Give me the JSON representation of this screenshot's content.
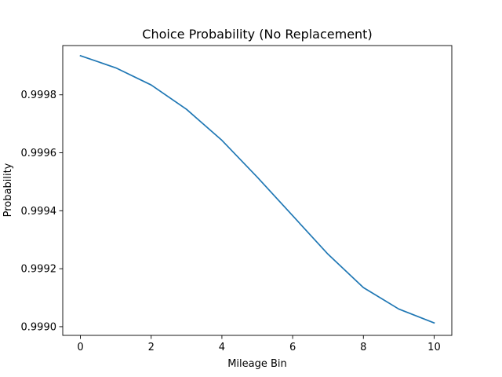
{
  "chart_data": {
    "type": "line",
    "title": "Choice Probability (No Replacement)",
    "xlabel": "Mileage Bin",
    "ylabel": "Probability",
    "xlim": [
      -0.5,
      10.5
    ],
    "ylim": [
      0.99897,
      0.99997
    ],
    "x_ticks": [
      0,
      2,
      4,
      6,
      8,
      10
    ],
    "x_tick_labels": [
      "0",
      "2",
      "4",
      "6",
      "8",
      "10"
    ],
    "y_ticks": [
      0.999,
      0.9992,
      0.9994,
      0.9996,
      0.9998
    ],
    "y_tick_labels": [
      "0.9990",
      "0.9992",
      "0.9994",
      "0.9996",
      "0.9998"
    ],
    "grid": false,
    "series": [
      {
        "color": "#1f77b4",
        "x": [
          0,
          1,
          2,
          3,
          4,
          5,
          6,
          7,
          8,
          9,
          10
        ],
        "values": [
          0.999935,
          0.999893,
          0.999834,
          0.99975,
          0.999643,
          0.999516,
          0.999383,
          0.99925,
          0.999135,
          0.999061,
          0.999013
        ]
      }
    ]
  }
}
